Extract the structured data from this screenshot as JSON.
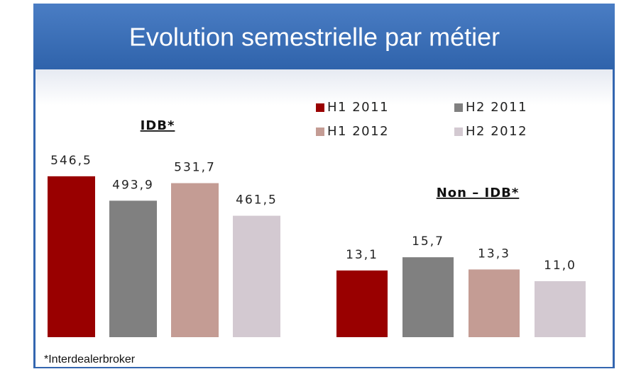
{
  "slide_title": "Evolution semestrielle par métier",
  "legend": {
    "names": [
      "H1 2011",
      "H2 2011",
      "H1 2012",
      "H2 2012"
    ],
    "colors": [
      "#990000",
      "#808080",
      "#c49c94",
      "#d3c9d1"
    ]
  },
  "chart_data": [
    {
      "type": "bar",
      "title": "IDB*",
      "values": [
        546.5,
        493.9,
        531.7,
        461.5
      ],
      "value_labels": [
        "546,5",
        "493,9",
        "531,7",
        "461,5"
      ],
      "ylim": [
        200,
        560
      ]
    },
    {
      "type": "bar",
      "title": "Non – IDB*",
      "values": [
        13.1,
        15.7,
        13.3,
        11.0
      ],
      "value_labels": [
        "13,1",
        "15,7",
        "13,3",
        "11,0"
      ],
      "ylim": [
        0,
        16
      ]
    }
  ],
  "footnote": "*Interdealerbroker"
}
